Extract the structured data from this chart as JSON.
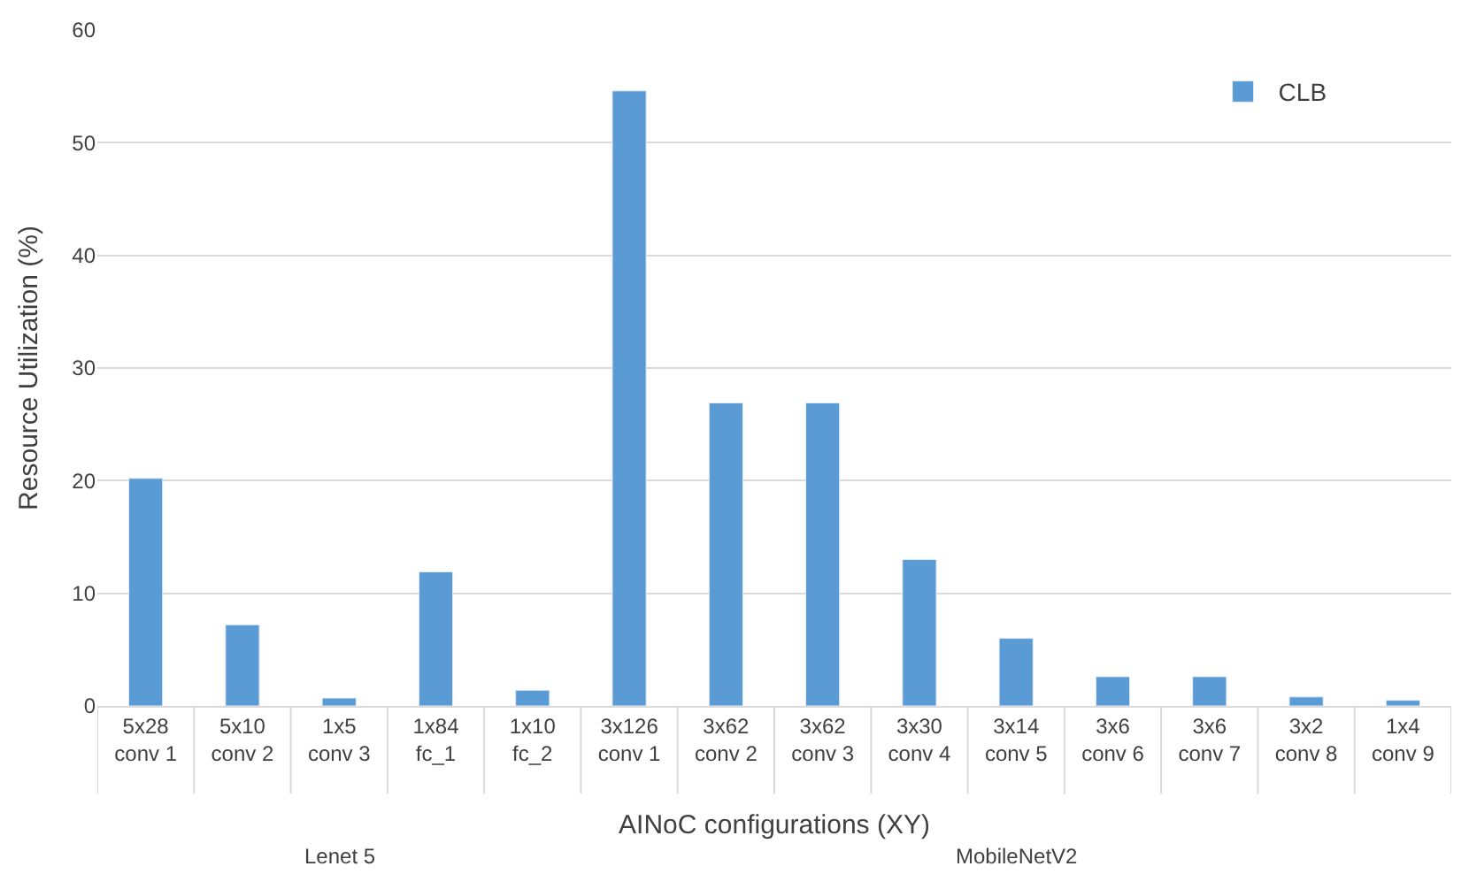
{
  "chart_data": {
    "type": "bar",
    "xlabel": "AINoC configurations (XY)",
    "ylabel": "Resource Utilization (%)",
    "categories": [
      "5x28\nconv 1",
      "5x10\nconv 2",
      "1x5\nconv 3",
      "1x84\nfc_1",
      "1x10\nfc_2",
      "3x126\nconv 1",
      "3x62\nconv 2",
      "3x62\nconv 3",
      "3x30\nconv 4",
      "3x14\nconv 5",
      "3x6\nconv 6",
      "3x6\nconv 7",
      "3x2\nconv 8",
      "1x4\nconv 9"
    ],
    "series": [
      {
        "name": "CLB",
        "color": "#5b9bd5",
        "values": [
          20.2,
          7.2,
          0.7,
          11.9,
          1.4,
          54.6,
          26.9,
          26.9,
          13.0,
          6.0,
          2.6,
          2.6,
          0.8,
          0.5
        ]
      }
    ],
    "annotations": [
      "Lenet 5",
      "MobileNetV2"
    ],
    "ylim": [
      0,
      60
    ],
    "yticks": [
      0,
      10,
      20,
      30,
      40,
      50,
      60
    ],
    "grid": "y",
    "legend": "top right"
  }
}
